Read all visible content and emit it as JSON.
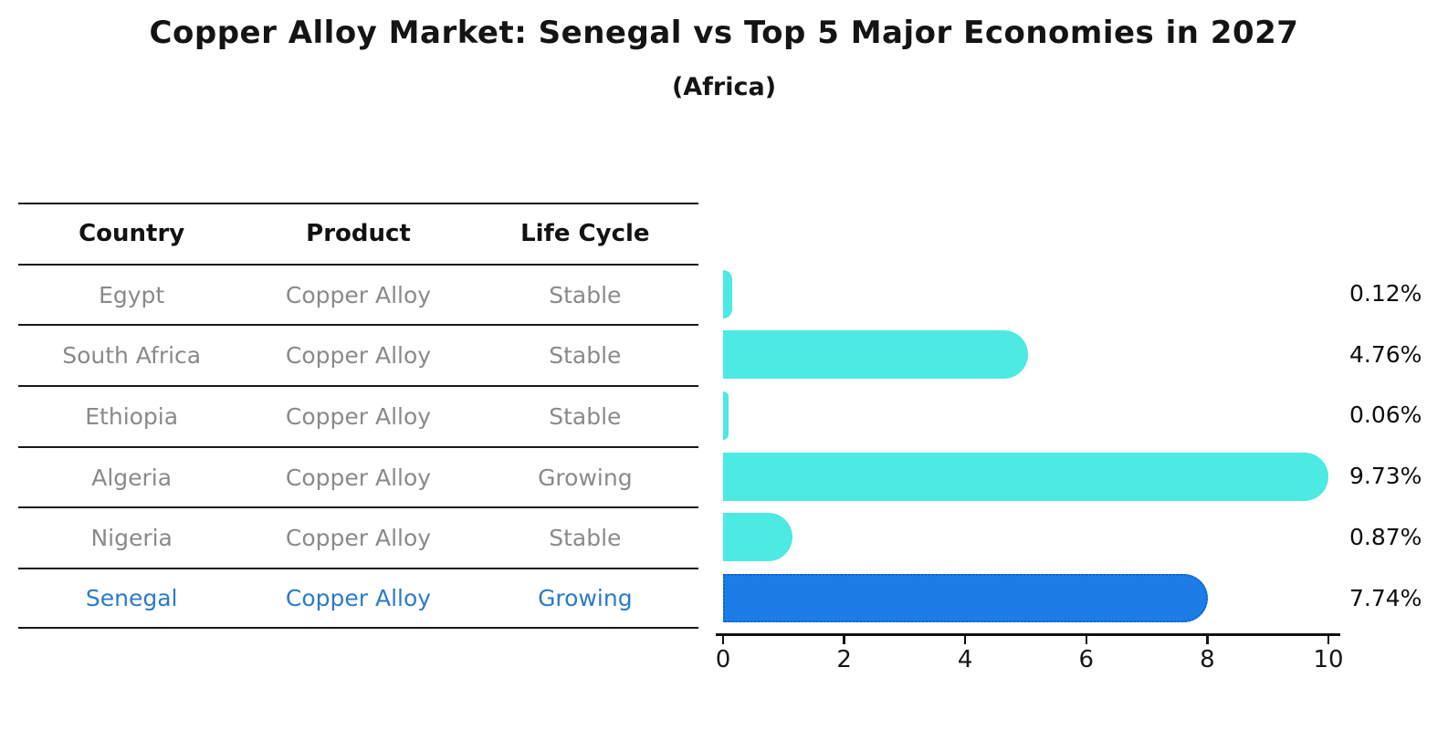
{
  "title": "Copper Alloy Market: Senegal vs Top 5 Major Economies in 2027",
  "subtitle": "(Africa)",
  "table": {
    "headers": [
      "Country",
      "Product",
      "Life Cycle"
    ],
    "rows": [
      {
        "country": "Egypt",
        "product": "Copper Alloy",
        "life_cycle": "Stable",
        "highlighted": false
      },
      {
        "country": "South Africa",
        "product": "Copper Alloy",
        "life_cycle": "Stable",
        "highlighted": false
      },
      {
        "country": "Ethiopia",
        "product": "Copper Alloy",
        "life_cycle": "Stable",
        "highlighted": false
      },
      {
        "country": "Algeria",
        "product": "Copper Alloy",
        "life_cycle": "Growing",
        "highlighted": false
      },
      {
        "country": "Nigeria",
        "product": "Copper Alloy",
        "life_cycle": "Stable",
        "highlighted": false
      },
      {
        "country": "Senegal",
        "product": "Copper Alloy",
        "life_cycle": "Growing",
        "highlighted": true
      }
    ]
  },
  "chart_data": {
    "type": "bar",
    "orientation": "horizontal",
    "title": "Copper Alloy Market: Senegal vs Top 5 Major Economies in 2027 (Africa)",
    "categories": [
      "Egypt",
      "South Africa",
      "Ethiopia",
      "Algeria",
      "Nigeria",
      "Senegal"
    ],
    "values": [
      0.12,
      4.76,
      0.06,
      9.73,
      0.87,
      7.74
    ],
    "value_labels": [
      "0.12%",
      "4.76%",
      "0.06%",
      "9.73%",
      "0.87%",
      "7.74%"
    ],
    "x_ticks": [
      0,
      2,
      4,
      6,
      8,
      10
    ],
    "xlim": [
      0,
      10
    ],
    "grid": false,
    "legend": "none",
    "highlight_index": 5,
    "bar_color": "#4DE9E3",
    "highlight_bar_color": "#1E7CE6",
    "highlight_border_color": "#0F63CF",
    "highlight_text_color": "#2B7BC9",
    "table_text_color": "#8a8a8a",
    "header_text_color": "#121212"
  }
}
